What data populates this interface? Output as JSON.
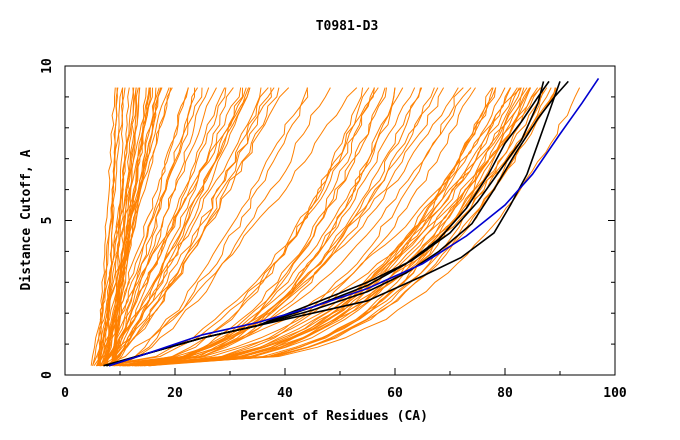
{
  "chart_data": {
    "type": "line",
    "title": "T0981-D3",
    "xlabel": "Percent of Residues (CA)",
    "ylabel": "Distance Cutoff, A",
    "xlim": [
      0,
      100
    ],
    "ylim": [
      0,
      10
    ],
    "x_ticks": [
      0,
      20,
      40,
      60,
      80,
      100
    ],
    "y_ticks": [
      0,
      5,
      10
    ],
    "grid": false,
    "legend": "none",
    "colors": {
      "orange": "#ff8000",
      "black": "#000000",
      "blue": "#0000d0"
    },
    "highlight_series": [
      {
        "color": "black",
        "x": [
          7.5,
          15,
          25,
          35,
          45,
          55,
          62,
          68,
          74,
          78,
          82,
          86,
          89,
          91.5
        ],
        "y": [
          0.3,
          0.7,
          1.2,
          1.6,
          2.1,
          2.7,
          3.3,
          4.0,
          4.9,
          6.0,
          7.2,
          8.3,
          9.0,
          9.5
        ]
      },
      {
        "color": "black",
        "x": [
          8,
          15,
          25,
          35,
          45,
          55,
          62,
          68,
          73,
          77,
          80,
          83,
          86,
          88
        ],
        "y": [
          0.3,
          0.7,
          1.2,
          1.6,
          2.2,
          2.9,
          3.6,
          4.4,
          5.4,
          6.5,
          7.5,
          8.2,
          9.0,
          9.5
        ]
      },
      {
        "color": "black",
        "x": [
          7.5,
          15,
          25,
          35,
          45,
          55,
          63,
          70,
          75,
          79,
          83,
          86,
          87
        ],
        "y": [
          0.3,
          0.7,
          1.2,
          1.6,
          2.3,
          3.0,
          3.7,
          4.6,
          5.6,
          6.6,
          7.6,
          8.8,
          9.5
        ]
      },
      {
        "color": "black",
        "x": [
          7,
          15,
          25,
          35,
          45,
          55,
          65,
          72,
          78,
          81,
          84,
          86,
          88,
          90
        ],
        "y": [
          0.3,
          0.7,
          1.2,
          1.6,
          2.0,
          2.4,
          3.2,
          3.8,
          4.6,
          5.5,
          6.5,
          7.5,
          8.5,
          9.5
        ]
      },
      {
        "color": "blue",
        "x": [
          8,
          15,
          25,
          35,
          45,
          55,
          65,
          73,
          80,
          85,
          90,
          94,
          97
        ],
        "y": [
          0.3,
          0.7,
          1.3,
          1.7,
          2.2,
          2.8,
          3.6,
          4.5,
          5.5,
          6.5,
          7.8,
          8.8,
          9.6
        ]
      }
    ],
    "orange_bundles": [
      {
        "count": 14,
        "x0": [
          6,
          10
        ],
        "x1": [
          9,
          14
        ],
        "curve": 1.0,
        "jitter": 0.12
      },
      {
        "count": 14,
        "x0": [
          5,
          9
        ],
        "x1": [
          15,
          20
        ],
        "curve": 1.0,
        "jitter": 0.15
      },
      {
        "count": 16,
        "x0": [
          5,
          9
        ],
        "x1": [
          20,
          35
        ],
        "curve": 1.1,
        "jitter": 0.2
      },
      {
        "count": 10,
        "x0": [
          6,
          10
        ],
        "x1": [
          35,
          56
        ],
        "curve": 1.3,
        "jitter": 0.3
      },
      {
        "count": 28,
        "x0": [
          6,
          14
        ],
        "x1": [
          52,
          92
        ],
        "curve": 2.4,
        "jitter": 0.25
      },
      {
        "count": 18,
        "x0": [
          10,
          16
        ],
        "x1": [
          78,
          95
        ],
        "curve": 3.0,
        "jitter": 0.2
      }
    ]
  }
}
